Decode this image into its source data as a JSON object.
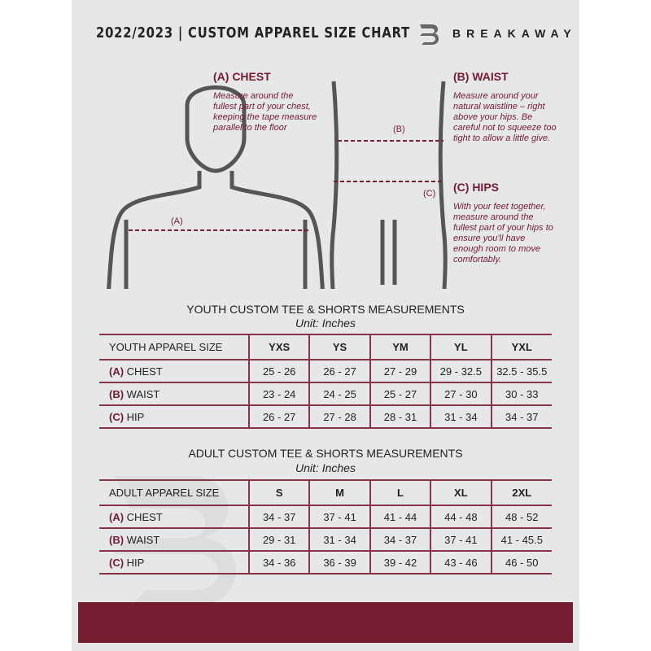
{
  "header": {
    "title": "2022/2023  |  CUSTOM APPAREL SIZE CHART",
    "brand": "BREAKAWAY"
  },
  "chest": {
    "heading": "(A) CHEST",
    "text": "Measure around the fullest part of your chest, keeping the tape measure parallel to the floor",
    "marker": "(A)"
  },
  "waist": {
    "heading": "(B) WAIST",
    "text": "Measure around your natural waistline – right above your hips. Be careful not to squeeze too tight to allow a little give.",
    "marker": "(B)"
  },
  "hips": {
    "heading": "(C) HIPS",
    "text": "With your feet together, measure around the fullest part of your hips to ensure you'll have enough room to move comfortably.",
    "marker": "(C)"
  },
  "youth": {
    "title": "YOUTH CUSTOM TEE & SHORTS MEASUREMENTS",
    "unit": "Unit: Inches",
    "size_label": "YOUTH APPAREL SIZE",
    "sizes": [
      "YXS",
      "YS",
      "YM",
      "YL",
      "YXL"
    ],
    "rows": [
      {
        "letter": "(A)",
        "name": "CHEST",
        "values": [
          "25 - 26",
          "26 - 27",
          "27 - 29",
          "29 - 32.5",
          "32.5 - 35.5"
        ]
      },
      {
        "letter": "(B)",
        "name": "WAIST",
        "values": [
          "23 - 24",
          "24 - 25",
          "25 - 27",
          "27 - 30",
          "30 - 33"
        ]
      },
      {
        "letter": "(C)",
        "name": "HIP",
        "values": [
          "26 - 27",
          "27 - 28",
          "28 - 31",
          "31 - 34",
          "34 - 37"
        ]
      }
    ]
  },
  "adult": {
    "title": "ADULT CUSTOM TEE & SHORTS MEASUREMENTS",
    "unit": "Unit: Inches",
    "size_label": "ADULT APPAREL SIZE",
    "sizes": [
      "S",
      "M",
      "L",
      "XL",
      "2XL"
    ],
    "rows": [
      {
        "letter": "(A)",
        "name": "CHEST",
        "values": [
          "34 - 37",
          "37 - 41",
          "41 - 44",
          "44 - 48",
          "48 - 52"
        ]
      },
      {
        "letter": "(B)",
        "name": "WAIST",
        "values": [
          "29 - 31",
          "31 - 34",
          "34 - 37",
          "37 - 41",
          "41 - 45.5"
        ]
      },
      {
        "letter": "(C)",
        "name": "HIP",
        "values": [
          "34 - 36",
          "36 - 39",
          "39 - 42",
          "43 - 46",
          "46 - 50"
        ]
      }
    ]
  },
  "colors": {
    "accent": "#741c30",
    "background": "#e6e7e8"
  }
}
